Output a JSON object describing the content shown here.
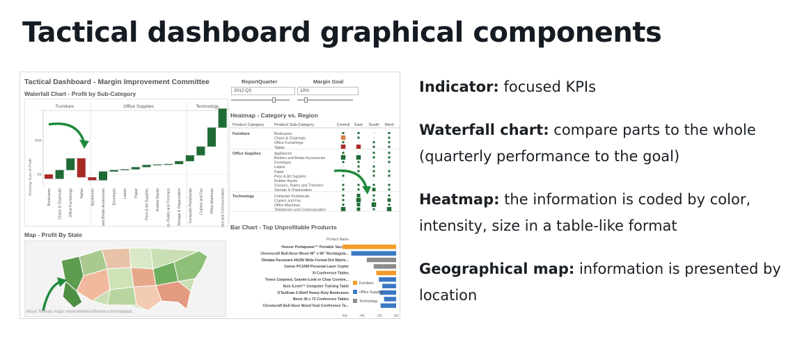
{
  "slide": {
    "title": "Tactical dashboard graphical components"
  },
  "dashboard": {
    "title": "Tactical Dashboard - Margin Improvement Committee",
    "attribution": "About Tableau maps: www.tableausoftware.com/mapdata",
    "filters": [
      {
        "label": "ReportQuarter",
        "value": "2012 Q3"
      },
      {
        "label": "Margin Goal",
        "value": "10%"
      }
    ],
    "waterfall": {
      "title": "Waterfall Chart - Profit by Sub-Category",
      "groups": [
        "Furniture",
        "Office Supplies",
        "Technology"
      ],
      "ylabel": "Running Sum of Profit",
      "yticks": [
        "50K",
        "0K"
      ],
      "categories": [
        "Bookcases",
        "Chairs & Chairmats",
        "Office Furnishings",
        "Tables",
        "Appliances",
        "Binders and Binder Accessories",
        "Envelopes",
        "Labels",
        "Paper",
        "Pens & Art Supplies",
        "Rubber Bands",
        "Scissors, Rulers and Trimmers",
        "Storage & Organization",
        "Computer Peripherals",
        "Copiers and Fax",
        "Office Machines",
        "Telephones and Communication"
      ]
    },
    "heatmap": {
      "title": "Heatmap - Category vs. Region",
      "col_category": "Product Category",
      "col_subcategory": "Product Sub-Category",
      "regions": [
        "Central",
        "East",
        "South",
        "West"
      ],
      "groups": [
        {
          "category": "Furniture",
          "items": [
            "Bookcases",
            "Chairs & Chairmats",
            "Office Furnishings",
            "Tables"
          ]
        },
        {
          "category": "Office Supplies",
          "items": [
            "Appliances",
            "Binders and Binder Accessories",
            "Envelopes",
            "Labels",
            "Paper",
            "Pens & Art Supplies",
            "Rubber Bands",
            "Scissors, Rulers and Trimmers",
            "Storage & Organization"
          ]
        },
        {
          "category": "Technology",
          "items": [
            "Computer Peripherals",
            "Copiers and Fax",
            "Office Machines",
            "Telephones and Communication"
          ]
        }
      ]
    },
    "bar_chart": {
      "title": "Bar Chart - Top Unprofitable Products",
      "column_header": "Product Name",
      "products": [
        "Hoover Portapower™ Portable Vacuum",
        "Chromcraft Bull-Nose Wood 48\" x 96\" Rectangula...",
        "Okidata Pacemark 4410N Wide Format Dot Matrix...",
        "Canon PC1060 Personal Laser Copier",
        "XI Conference Tables",
        "Tenex Carpeted, Granite-Look or Clear Contem...",
        "Ikon iLevel™ Computer Training Table",
        "O'Sullivan 2-Shelf Heavy-Duty Bookcases",
        "Bevis 36 x 72 Conference Tables",
        "Chromcraft Bull-Nose Wood Oval Conference Ta..."
      ],
      "legend": [
        "Furniture",
        "Office Supplies",
        "Technology"
      ],
      "xticks": [
        "-6K",
        "-4K",
        "-2K",
        "0K"
      ]
    },
    "map": {
      "title": "Map - Profit By State"
    }
  },
  "descriptions": [
    {
      "term": "Indicator:",
      "text": " focused KPIs"
    },
    {
      "term": "Waterfall chart:",
      "text": " compare parts to the whole (quarterly performance to the goal)"
    },
    {
      "term": "Heatmap:",
      "text": " the information is coded by color, intensity, size in a table-like format"
    },
    {
      "term": "Geographical map:",
      "text": " information is presented by location"
    }
  ],
  "colors": {
    "furniture": "#f39c2b",
    "office_supplies": "#3a78c4",
    "technology": "#8c8c8c",
    "positive": "#1f6b35",
    "negative": "#a82a25",
    "arrow": "#1f8a3c"
  }
}
